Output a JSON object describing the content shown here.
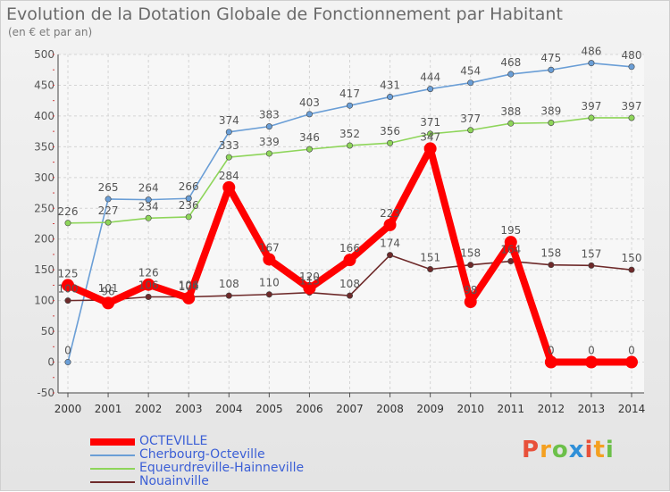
{
  "title": "Evolution de la Dotation Globale de Fonctionnement par Habitant",
  "subtitle": "(en € et par an)",
  "brand": {
    "letters": [
      "P",
      "r",
      "o",
      "x",
      "i",
      "t",
      "i"
    ],
    "colors": [
      "#e8503a",
      "#f4a020",
      "#6cc04a",
      "#2f8fd8",
      "#e8503a",
      "#f4a020",
      "#6cc04a"
    ]
  },
  "chart_data": {
    "type": "line",
    "title": "Evolution de la Dotation Globale de Fonctionnement par Habitant",
    "ylabel": "(en € et par an)",
    "x": [
      "2000",
      "2001",
      "2002",
      "2003",
      "2004",
      "2005",
      "2006",
      "2007",
      "2008",
      "2009",
      "2010",
      "2011",
      "2012",
      "2013",
      "2014"
    ],
    "ylim": [
      -50,
      500
    ],
    "yticks": [
      -50,
      0,
      50,
      100,
      150,
      200,
      250,
      300,
      350,
      400,
      450,
      500
    ],
    "grid": true,
    "series": [
      {
        "name": "Cherbourg-Octeville",
        "color": "#6a9ed6",
        "values": [
          0,
          265,
          264,
          266,
          374,
          383,
          403,
          417,
          431,
          444,
          454,
          468,
          475,
          486,
          480
        ]
      },
      {
        "name": "Equeurdreville-Hainneville",
        "color": "#8ed55a",
        "values": [
          226,
          227,
          234,
          236,
          333,
          339,
          346,
          352,
          356,
          371,
          377,
          388,
          389,
          397,
          397
        ]
      },
      {
        "name": "Nouainville",
        "color": "#6e2a2a",
        "values": [
          100,
          101,
          106,
          106,
          108,
          110,
          113,
          108,
          174,
          151,
          158,
          164,
          158,
          157,
          150
        ]
      },
      {
        "name": "OCTEVILLE",
        "color": "#ff0000",
        "values": [
          125,
          96,
          126,
          104,
          284,
          167,
          120,
          166,
          223,
          347,
          98,
          195,
          0,
          0,
          0
        ]
      }
    ],
    "legend": [
      "OCTEVILLE",
      "Cherbourg-Octeville",
      "Equeurdreville-Hainneville",
      "Nouainville"
    ]
  }
}
